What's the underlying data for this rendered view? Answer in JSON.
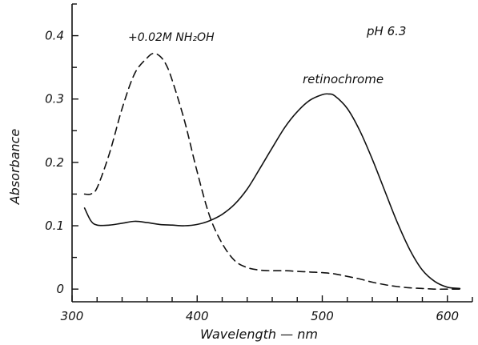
{
  "chart_data": {
    "type": "line",
    "annotation": "pH 6.3",
    "xlabel": "Wavelength — nm",
    "ylabel": "Absorbance",
    "xlim": [
      300,
      620
    ],
    "ylim": [
      -0.02,
      0.45
    ],
    "x_ticks": [
      300,
      400,
      500,
      600
    ],
    "x_tick_labels": [
      "300",
      "400",
      "500",
      "600"
    ],
    "x_minor_step": 20,
    "y_ticks": [
      0,
      0.1,
      0.2,
      0.3,
      0.4
    ],
    "y_tick_labels": [
      "0",
      "0.1",
      "0.2",
      "0.3",
      "0.4"
    ],
    "y_minor_step": 0.05,
    "grid": false,
    "legend": "none",
    "series": [
      {
        "name": "retinochrome",
        "style": "solid",
        "color": "#111111",
        "x": [
          310,
          315,
          320,
          330,
          340,
          350,
          360,
          370,
          380,
          390,
          400,
          410,
          420,
          430,
          440,
          450,
          460,
          470,
          480,
          490,
          500,
          505,
          510,
          520,
          530,
          540,
          550,
          560,
          570,
          580,
          590,
          600,
          610
        ],
        "y": [
          0.128,
          0.108,
          0.101,
          0.101,
          0.104,
          0.107,
          0.105,
          0.102,
          0.101,
          0.1,
          0.102,
          0.108,
          0.118,
          0.134,
          0.158,
          0.19,
          0.223,
          0.255,
          0.28,
          0.298,
          0.307,
          0.308,
          0.305,
          0.285,
          0.25,
          0.205,
          0.155,
          0.105,
          0.062,
          0.03,
          0.012,
          0.003,
          0.001
        ]
      },
      {
        "name": "+0.02M NH₂OH",
        "style": "dashed",
        "color": "#111111",
        "x": [
          310,
          315,
          320,
          330,
          340,
          350,
          360,
          365,
          370,
          375,
          380,
          390,
          400,
          410,
          420,
          430,
          440,
          450,
          460,
          470,
          480,
          490,
          500,
          510,
          520,
          530,
          540,
          550,
          560,
          570,
          580,
          590,
          600,
          610
        ],
        "y": [
          0.15,
          0.15,
          0.16,
          0.215,
          0.285,
          0.34,
          0.365,
          0.372,
          0.368,
          0.355,
          0.33,
          0.265,
          0.185,
          0.115,
          0.072,
          0.045,
          0.034,
          0.03,
          0.029,
          0.029,
          0.028,
          0.027,
          0.026,
          0.024,
          0.02,
          0.016,
          0.011,
          0.007,
          0.004,
          0.002,
          0.001,
          0.0,
          0.0,
          0.0
        ]
      }
    ]
  }
}
